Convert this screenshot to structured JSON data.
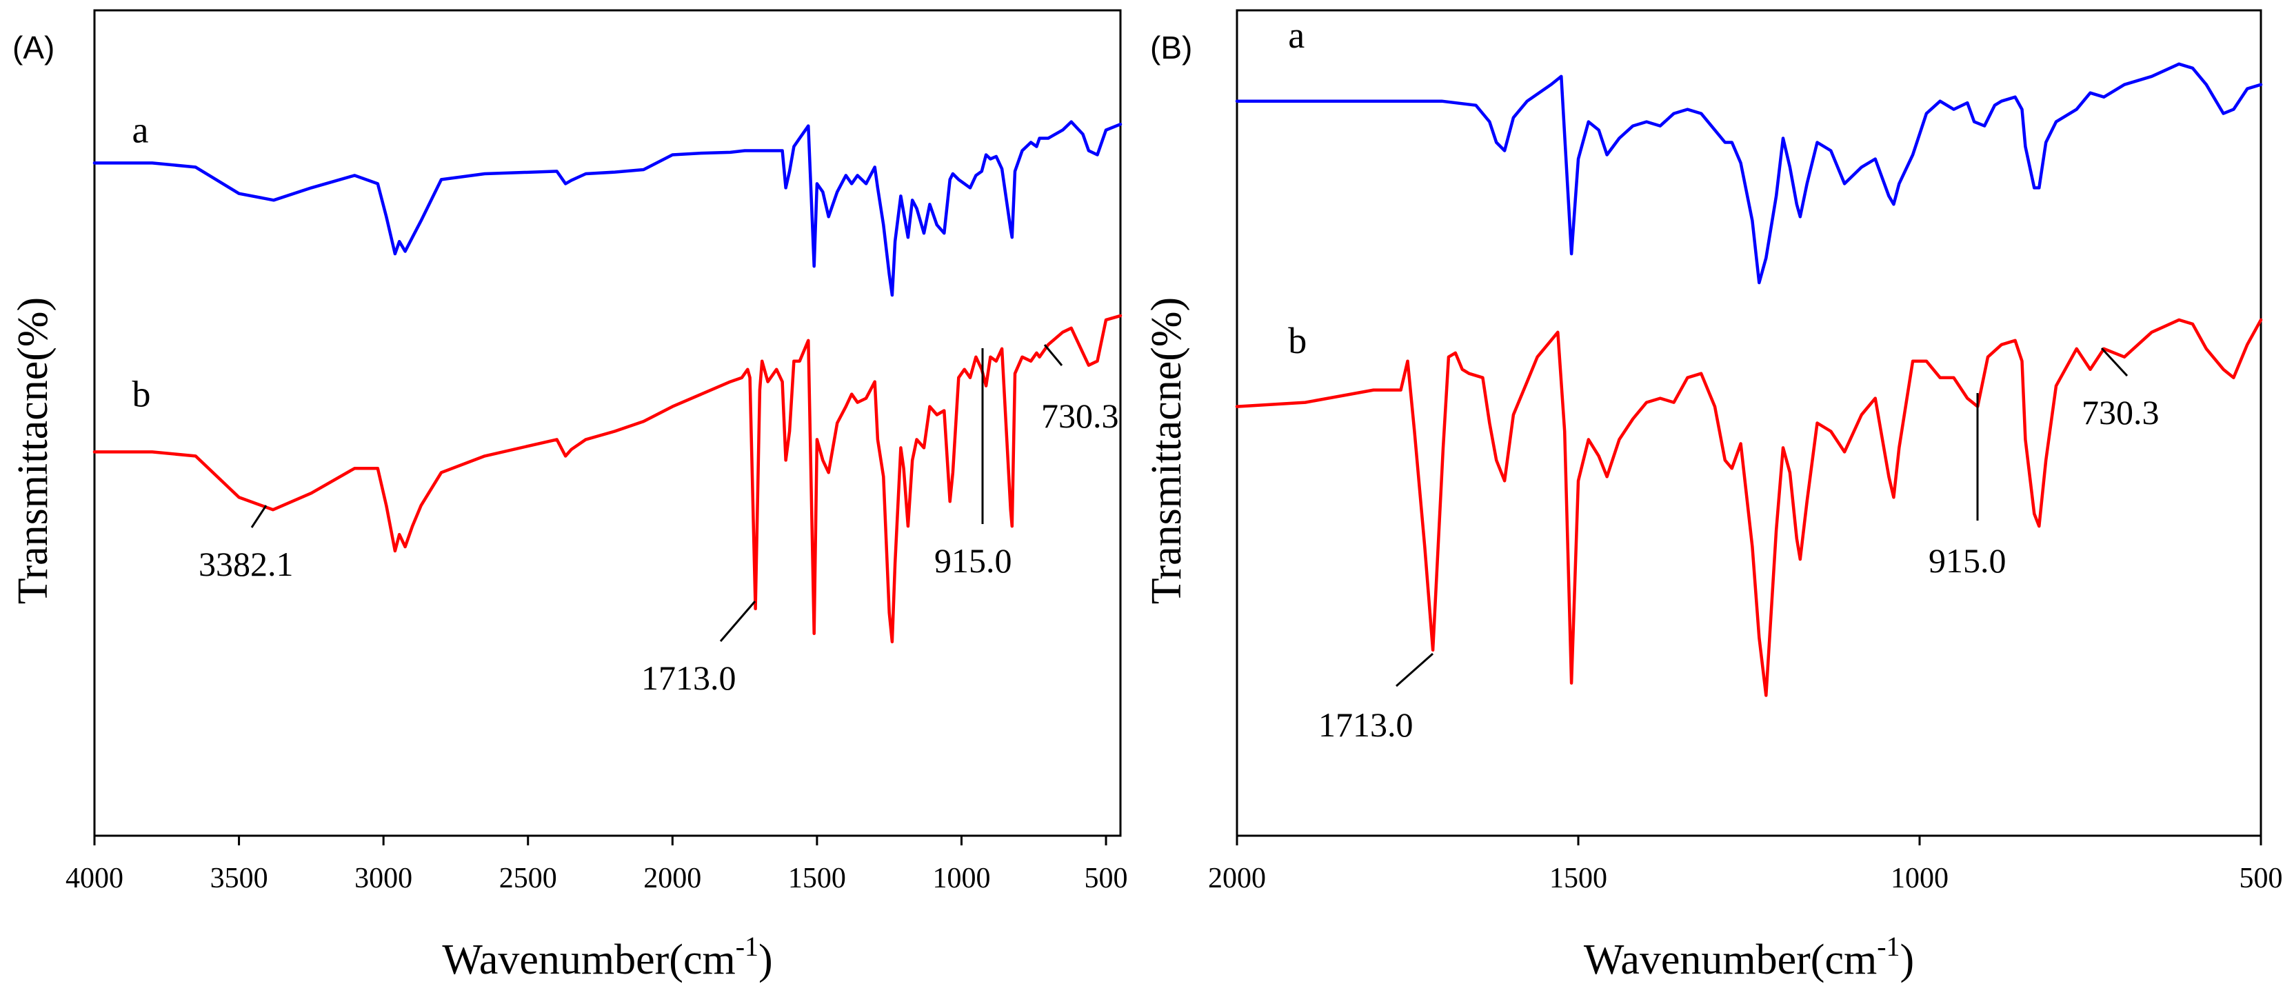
{
  "chart_data": [
    {
      "type": "line",
      "panel": "(A)",
      "xlabel": "Wavenumber(cm",
      "xlabel_sup": "-1",
      "xlabel_close": ")",
      "ylabel": "Transmittacne(%)",
      "xlim": [
        4000,
        450
      ],
      "x_reversed": true,
      "ylim": [
        0,
        100
      ],
      "xticks": [
        4000,
        3500,
        3000,
        2500,
        2000,
        1500,
        1000,
        500
      ],
      "colors": {
        "a": "#0000ff",
        "b": "#ff0000"
      },
      "series": [
        {
          "name": "a",
          "color": "#0000ff",
          "label_x": 3870,
          "label_y": 84,
          "x": [
            4000,
            3800,
            3650,
            3500,
            3380,
            3250,
            3100,
            3020,
            2990,
            2960,
            2945,
            2925,
            2900,
            2870,
            2800,
            2650,
            2400,
            2370,
            2350,
            2300,
            2200,
            2100,
            2000,
            1900,
            1800,
            1750,
            1700,
            1620,
            1608,
            1595,
            1580,
            1560,
            1530,
            1510,
            1500,
            1480,
            1460,
            1430,
            1400,
            1380,
            1360,
            1330,
            1300,
            1290,
            1270,
            1250,
            1240,
            1230,
            1210,
            1200,
            1185,
            1170,
            1155,
            1130,
            1110,
            1085,
            1060,
            1040,
            1030,
            1010,
            990,
            970,
            950,
            930,
            915,
            900,
            880,
            860,
            830,
            825,
            815,
            790,
            760,
            740,
            730,
            700,
            650,
            620,
            580,
            560,
            530,
            500,
            450
          ],
          "y": [
            81.5,
            81.5,
            81,
            77.8,
            77,
            78.5,
            80,
            79,
            75,
            70.5,
            72,
            70.8,
            72.5,
            74.5,
            79.5,
            80.2,
            80.5,
            79,
            79.4,
            80.2,
            80.4,
            80.7,
            82.5,
            82.7,
            82.8,
            83,
            83,
            83,
            78.5,
            80.5,
            83.5,
            84.5,
            86,
            69,
            79,
            78,
            75,
            78,
            80,
            79,
            80,
            79,
            81,
            78.5,
            74,
            68,
            65.5,
            72,
            77.5,
            75.5,
            72.5,
            77,
            76,
            73,
            76.5,
            74,
            73,
            79.5,
            80.2,
            79.5,
            79,
            78.5,
            80,
            80.5,
            82.5,
            82,
            82.3,
            80.8,
            73.5,
            72.5,
            80.5,
            83,
            84,
            83.5,
            84.5,
            84.5,
            85.5,
            86.5,
            85,
            83,
            82.5,
            85.5,
            86.2
          ]
        },
        {
          "name": "b",
          "color": "#ff0000",
          "label_x": 3870,
          "label_y": 52,
          "x": [
            4000,
            3800,
            3650,
            3500,
            3382,
            3250,
            3100,
            3020,
            2990,
            2960,
            2945,
            2925,
            2900,
            2870,
            2800,
            2650,
            2400,
            2370,
            2350,
            2300,
            2200,
            2100,
            2000,
            1900,
            1800,
            1760,
            1740,
            1732,
            1713,
            1698,
            1690,
            1670,
            1640,
            1620,
            1608,
            1595,
            1580,
            1560,
            1530,
            1510,
            1500,
            1480,
            1460,
            1430,
            1400,
            1380,
            1360,
            1330,
            1300,
            1290,
            1270,
            1250,
            1240,
            1230,
            1210,
            1200,
            1185,
            1170,
            1155,
            1130,
            1110,
            1085,
            1060,
            1040,
            1030,
            1010,
            990,
            970,
            950,
            930,
            915,
            900,
            880,
            860,
            830,
            825,
            815,
            790,
            760,
            740,
            730,
            700,
            650,
            620,
            580,
            560,
            530,
            500,
            450
          ],
          "y": [
            46.5,
            46.5,
            46,
            41,
            39.5,
            41.5,
            44.5,
            44.5,
            40,
            34.5,
            36.5,
            35,
            37.5,
            40,
            44,
            46,
            48,
            46,
            46.8,
            48,
            49,
            50.2,
            52,
            53.5,
            55,
            55.5,
            56.5,
            55.5,
            27.5,
            54,
            57.5,
            55,
            56.5,
            55,
            45.5,
            49,
            57.5,
            57.5,
            60,
            24.5,
            48,
            45.5,
            44,
            50,
            52,
            53.5,
            52.5,
            53,
            55,
            48,
            43.5,
            27,
            23.5,
            33,
            47,
            44.5,
            37.5,
            45.5,
            48,
            47,
            52,
            51,
            51.5,
            40.5,
            44,
            55.5,
            56.5,
            55.5,
            58,
            56.5,
            54.5,
            58,
            57.5,
            59,
            39.5,
            37.5,
            56,
            58,
            57.5,
            58.5,
            58,
            59.5,
            61,
            61.5,
            58.5,
            57,
            57.5,
            62.5,
            63
          ]
        }
      ],
      "annotations": [
        {
          "label": "3382.1",
          "x": 3382.1,
          "series": "b"
        },
        {
          "label": "1713.0",
          "x": 1713.0,
          "series": "b"
        },
        {
          "label": "915.0",
          "x": 915.0,
          "series": "b"
        },
        {
          "label": "730.3",
          "x": 730.3,
          "series": "b"
        }
      ]
    },
    {
      "type": "line",
      "panel": "(B)",
      "xlabel": "Wavenumber(cm",
      "xlabel_sup": "-1",
      "xlabel_close": ")",
      "ylabel": "Transmittacne(%)",
      "xlim": [
        2000,
        500
      ],
      "x_reversed": true,
      "ylim": [
        0,
        100
      ],
      "xticks": [
        2000,
        1500,
        1000,
        500
      ],
      "colors": {
        "a": "#0000ff",
        "b": "#ff0000"
      },
      "series": [
        {
          "name": "a",
          "color": "#0000ff",
          "label_x": 1925,
          "label_y": 95.5,
          "x": [
            2000,
            1900,
            1800,
            1700,
            1650,
            1630,
            1620,
            1608,
            1595,
            1575,
            1540,
            1525,
            1510,
            1500,
            1485,
            1470,
            1458,
            1440,
            1420,
            1400,
            1380,
            1360,
            1340,
            1320,
            1300,
            1285,
            1275,
            1262,
            1245,
            1235,
            1225,
            1210,
            1200,
            1190,
            1180,
            1175,
            1165,
            1150,
            1130,
            1110,
            1085,
            1065,
            1045,
            1038,
            1030,
            1010,
            990,
            970,
            950,
            930,
            920,
            905,
            890,
            880,
            860,
            850,
            845,
            832,
            825,
            815,
            800,
            770,
            750,
            730,
            700,
            660,
            620,
            600,
            580,
            555,
            540,
            520,
            500
          ],
          "y": [
            89,
            89,
            89,
            89,
            88.5,
            86.5,
            84,
            83,
            87,
            89,
            91,
            92,
            70.5,
            82,
            86.5,
            85.5,
            82.5,
            84.5,
            86,
            86.5,
            86,
            87.5,
            88,
            87.5,
            85.5,
            84,
            84,
            81.5,
            74.5,
            67,
            70,
            77.5,
            84.5,
            81,
            76.5,
            75,
            79,
            84,
            83,
            79,
            81,
            82,
            77.5,
            76.5,
            79,
            82.5,
            87.5,
            89,
            88,
            88.8,
            86.5,
            86,
            88.5,
            89,
            89.5,
            88,
            83.5,
            78.5,
            78.5,
            84,
            86.5,
            88,
            90,
            89.5,
            91,
            92,
            93.5,
            93,
            91,
            87.5,
            88,
            90.5,
            91
          ]
        },
        {
          "name": "b",
          "color": "#ff0000",
          "label_x": 1925,
          "label_y": 58.5,
          "x": [
            2000,
            1900,
            1800,
            1760,
            1750,
            1740,
            1725,
            1713,
            1698,
            1690,
            1680,
            1670,
            1660,
            1640,
            1630,
            1620,
            1608,
            1595,
            1575,
            1560,
            1540,
            1530,
            1520,
            1510,
            1500,
            1485,
            1470,
            1458,
            1440,
            1420,
            1400,
            1380,
            1360,
            1340,
            1320,
            1300,
            1285,
            1275,
            1262,
            1245,
            1235,
            1225,
            1210,
            1200,
            1190,
            1180,
            1175,
            1165,
            1150,
            1130,
            1110,
            1085,
            1065,
            1045,
            1038,
            1030,
            1010,
            990,
            970,
            950,
            930,
            915,
            900,
            880,
            860,
            850,
            845,
            832,
            825,
            815,
            800,
            770,
            750,
            730,
            700,
            660,
            620,
            600,
            580,
            555,
            540,
            520,
            500
          ],
          "y": [
            52,
            52.5,
            54,
            54,
            57.5,
            49,
            35,
            22.5,
            47,
            58,
            58.5,
            56.5,
            56,
            55.5,
            50,
            45.5,
            43,
            51,
            55,
            58,
            60,
            61,
            49,
            18.5,
            43,
            48,
            46,
            43.5,
            48,
            50.5,
            52.5,
            53,
            52.5,
            55.5,
            56,
            52,
            45.5,
            44.5,
            47.5,
            35,
            24,
            17,
            37,
            47,
            44,
            36,
            33.5,
            40.5,
            50,
            49,
            46.5,
            51,
            53,
            43.5,
            41,
            47,
            57.5,
            57.5,
            55.5,
            55.5,
            53,
            52,
            58,
            59.5,
            60,
            57.5,
            48,
            39,
            37.5,
            45.5,
            54.5,
            59,
            56.5,
            59,
            58,
            61,
            62.5,
            62,
            59,
            56.5,
            55.5,
            59.5,
            62.5
          ]
        }
      ],
      "annotations": [
        {
          "label": "1713.0",
          "x": 1713.0,
          "series": "b"
        },
        {
          "label": "915.0",
          "x": 915.0,
          "series": "b"
        },
        {
          "label": "730.3",
          "x": 730.3,
          "series": "b"
        }
      ]
    }
  ]
}
